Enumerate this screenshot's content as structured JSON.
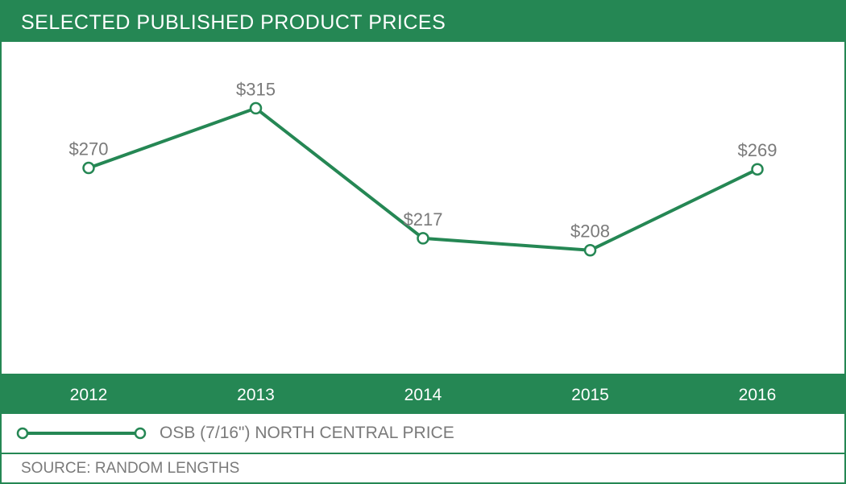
{
  "colors": {
    "accent": "#258754",
    "label_gray": "#7a7a7a",
    "background": "#ffffff"
  },
  "chart_data": {
    "type": "line",
    "title": "SELECTED PUBLISHED PRODUCT PRICES",
    "categories": [
      "2012",
      "2013",
      "2014",
      "2015",
      "2016"
    ],
    "series": [
      {
        "name": "OSB (7/16\") NORTH CENTRAL PRICE",
        "values": [
          270,
          315,
          217,
          208,
          269
        ],
        "labels": [
          "$270",
          "$315",
          "$217",
          "$208",
          "$269"
        ]
      }
    ],
    "xlabel": "",
    "ylabel": "",
    "ylim": [
      115,
      365
    ],
    "grid": false,
    "legend_position": "bottom",
    "source": "SOURCE: RANDOM LENGTHS"
  }
}
